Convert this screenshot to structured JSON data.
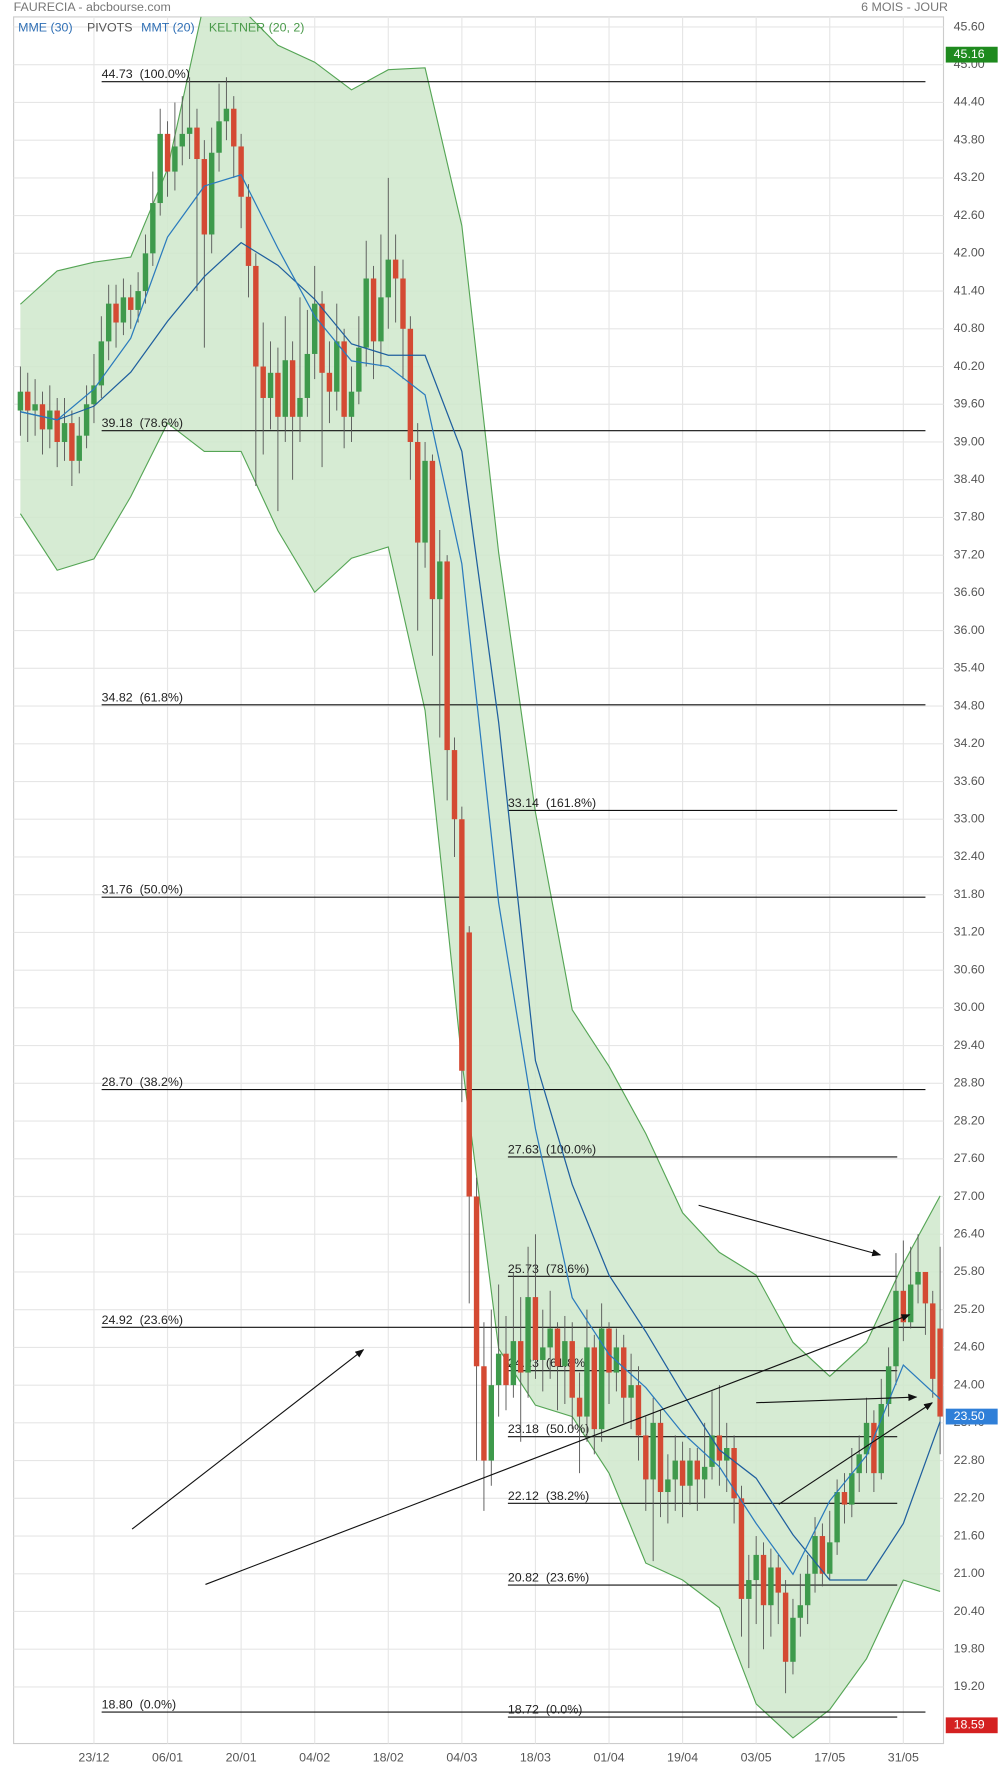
{
  "chart_data": {
    "type": "candlestick",
    "title": "FAURECIA - abcbourse.com",
    "subtitle": "6 MOIS - JOUR",
    "pivots": "PIVOTS",
    "categories": [
      null,
      null,
      null,
      null,
      null,
      null,
      null,
      null,
      null,
      null,
      "23/12",
      null,
      null,
      null,
      null,
      null,
      null,
      null,
      null,
      null,
      "06/01",
      null,
      null,
      null,
      null,
      null,
      null,
      null,
      null,
      null,
      "20/01",
      null,
      null,
      null,
      null,
      null,
      null,
      null,
      null,
      null,
      "04/02",
      null,
      null,
      null,
      null,
      null,
      null,
      null,
      null,
      null,
      "18/02",
      null,
      null,
      null,
      null,
      null,
      null,
      null,
      null,
      null,
      "04/03",
      null,
      null,
      null,
      null,
      null,
      null,
      null,
      null,
      null,
      "18/03",
      null,
      null,
      null,
      null,
      null,
      null,
      null,
      null,
      null,
      "01/04",
      null,
      null,
      null,
      null,
      null,
      null,
      null,
      null,
      null,
      "19/04",
      null,
      null,
      null,
      null,
      null,
      null,
      null,
      null,
      null,
      "03/05",
      null,
      null,
      null,
      null,
      null,
      null,
      null,
      null,
      null,
      "17/05",
      null,
      null,
      null,
      null,
      null,
      null,
      null,
      null,
      null,
      "31/05",
      null,
      null,
      null,
      null,
      null
    ],
    "open": [
      39.5,
      39.8,
      39.5,
      39.6,
      39.2,
      39.5,
      39.0,
      39.3,
      38.7,
      39.1,
      39.6,
      39.9,
      40.6,
      41.2,
      40.9,
      41.3,
      41.1,
      41.4,
      42.0,
      42.8,
      43.9,
      43.3,
      43.7,
      43.9,
      44.0,
      43.5,
      42.3,
      43.6,
      44.1,
      44.3,
      43.7,
      42.9,
      41.8,
      40.2,
      39.7,
      40.1,
      39.4,
      40.3,
      39.4,
      39.7,
      40.4,
      41.2,
      40.1,
      39.8,
      40.6,
      39.4,
      39.8,
      40.5,
      41.6,
      40.6,
      41.3,
      41.9,
      41.6,
      40.8,
      39.0,
      37.4,
      38.7,
      36.5,
      37.1,
      34.1,
      33.0,
      31.2,
      27.0,
      24.3,
      22.8,
      24.0,
      24.5,
      24.0,
      24.7,
      24.2,
      25.4,
      24.4,
      24.6,
      24.9,
      24.3,
      24.7,
      23.8,
      23.5,
      24.6,
      23.3,
      24.9,
      24.2,
      24.6,
      23.8,
      24.0,
      23.2,
      22.5,
      23.4,
      22.3,
      22.5,
      22.8,
      22.4,
      22.8,
      22.5,
      22.7,
      23.2,
      22.8,
      23.0,
      22.2,
      20.6,
      20.9,
      21.3,
      20.5,
      21.1,
      20.7,
      19.6,
      20.3,
      20.5,
      21.0,
      21.6,
      21.0,
      21.5,
      22.3,
      22.1,
      22.6,
      22.9,
      23.4,
      22.6,
      23.7,
      24.3,
      25.5,
      25.0,
      25.6,
      25.8,
      25.3,
      24.9
    ],
    "high": [
      40.2,
      40.1,
      40.0,
      39.8,
      39.9,
      39.7,
      39.7,
      39.5,
      39.4,
      39.9,
      40.4,
      41.0,
      41.5,
      41.5,
      41.6,
      41.5,
      41.7,
      42.3,
      43.3,
      44.3,
      44.1,
      44.4,
      44.5,
      44.8,
      44.3,
      43.8,
      44.0,
      44.7,
      44.8,
      44.5,
      43.9,
      43.1,
      42.0,
      40.9,
      40.6,
      40.5,
      41.0,
      40.6,
      41.3,
      41.1,
      41.8,
      41.4,
      40.6,
      41.2,
      40.8,
      40.2,
      41.0,
      42.2,
      41.8,
      42.3,
      43.2,
      42.3,
      41.9,
      41.0,
      39.3,
      39.0,
      38.8,
      37.6,
      37.2,
      34.3,
      33.2,
      31.3,
      27.3,
      25.0,
      25.2,
      25.6,
      25.1,
      25.8,
      25.4,
      26.2,
      26.4,
      25.2,
      25.5,
      25.0,
      25.1,
      25.0,
      24.2,
      25.2,
      24.8,
      25.3,
      25.0,
      24.9,
      24.8,
      24.5,
      24.3,
      23.5,
      23.8,
      23.6,
      22.9,
      23.2,
      23.1,
      23.0,
      23.0,
      23.4,
      23.9,
      24.0,
      23.4,
      23.2,
      22.4,
      21.3,
      21.6,
      21.5,
      21.4,
      21.3,
      20.9,
      20.6,
      21.0,
      21.3,
      21.9,
      21.8,
      22.0,
      22.5,
      22.6,
      23.0,
      23.2,
      23.8,
      23.6,
      24.1,
      24.6,
      26.1,
      26.3,
      26.2,
      26.4,
      25.7,
      25.5,
      26.2
    ],
    "low": [
      39.1,
      39.0,
      39.1,
      38.8,
      38.9,
      38.6,
      38.7,
      38.3,
      38.5,
      38.9,
      39.3,
      39.7,
      40.3,
      40.5,
      40.7,
      40.8,
      40.9,
      41.2,
      41.8,
      42.6,
      42.9,
      43.0,
      43.4,
      43.5,
      41.4,
      40.5,
      42.0,
      43.3,
      43.8,
      43.2,
      42.4,
      41.3,
      38.3,
      38.8,
      39.2,
      37.9,
      39.0,
      38.4,
      39.0,
      39.4,
      40.0,
      38.6,
      39.3,
      39.5,
      38.9,
      39.0,
      39.6,
      40.2,
      40.0,
      40.2,
      40.8,
      40.9,
      40.0,
      38.4,
      36.0,
      37.0,
      35.6,
      34.3,
      33.3,
      32.4,
      28.5,
      25.3,
      22.8,
      22.0,
      22.4,
      23.5,
      23.6,
      23.8,
      23.1,
      23.8,
      24.1,
      23.9,
      24.1,
      23.6,
      23.7,
      23.3,
      22.6,
      23.1,
      22.9,
      23.1,
      23.7,
      23.9,
      23.4,
      23.3,
      22.8,
      22.0,
      21.2,
      21.9,
      21.8,
      22.0,
      21.9,
      22.1,
      22.0,
      22.2,
      22.5,
      22.4,
      22.3,
      21.8,
      20.0,
      19.5,
      20.2,
      19.8,
      20.0,
      20.2,
      19.1,
      19.4,
      20.0,
      20.2,
      20.7,
      20.8,
      20.9,
      21.3,
      21.8,
      21.9,
      22.3,
      22.6,
      22.3,
      22.5,
      23.5,
      24.0,
      24.7,
      24.9,
      25.3,
      24.8,
      23.8,
      22.9
    ],
    "close": [
      39.8,
      39.5,
      39.6,
      39.2,
      39.5,
      39.0,
      39.3,
      38.7,
      39.1,
      39.6,
      39.9,
      40.6,
      41.2,
      40.9,
      41.3,
      41.1,
      41.4,
      42.0,
      42.8,
      43.9,
      43.3,
      43.7,
      43.9,
      44.0,
      43.5,
      42.3,
      43.6,
      44.1,
      44.3,
      43.7,
      42.9,
      41.8,
      40.2,
      39.7,
      40.1,
      39.4,
      40.3,
      39.4,
      39.7,
      40.4,
      41.2,
      40.1,
      39.8,
      40.6,
      39.4,
      39.8,
      40.5,
      41.6,
      40.6,
      41.3,
      41.9,
      41.6,
      40.8,
      39.0,
      37.4,
      38.7,
      36.5,
      37.1,
      34.1,
      33.0,
      29.0,
      27.0,
      24.3,
      22.8,
      24.0,
      24.5,
      24.0,
      24.7,
      24.2,
      25.4,
      24.4,
      24.6,
      24.9,
      24.3,
      24.7,
      23.8,
      23.5,
      24.6,
      23.3,
      24.9,
      24.2,
      24.6,
      23.8,
      24.0,
      23.2,
      22.5,
      23.4,
      22.3,
      22.5,
      22.8,
      22.4,
      22.8,
      22.5,
      22.7,
      23.2,
      22.8,
      23.0,
      22.2,
      20.6,
      20.9,
      21.3,
      20.5,
      21.1,
      20.7,
      19.6,
      20.3,
      20.5,
      21.0,
      21.6,
      21.0,
      21.5,
      22.3,
      22.1,
      22.6,
      22.9,
      23.4,
      22.6,
      23.7,
      24.3,
      25.5,
      25.0,
      25.6,
      25.8,
      25.3,
      24.1,
      23.5
    ],
    "up_color": "#3e9a4c",
    "down_color": "#d44a33",
    "indicators": [
      {
        "name": "MME (30)",
        "color": "#1f5f9e",
        "x": [
          0,
          5,
          10,
          15,
          20,
          25,
          30,
          35,
          40,
          45,
          50,
          55,
          60,
          65,
          70,
          75,
          80,
          85,
          90,
          95,
          100,
          105,
          110,
          115,
          120,
          125
        ],
        "values": [
          39.48,
          39.35,
          39.57,
          40.11,
          40.92,
          41.63,
          42.17,
          41.81,
          41.27,
          40.56,
          40.38,
          40.38,
          38.85,
          34.54,
          29.16,
          27.19,
          25.75,
          24.85,
          23.87,
          22.97,
          22.52,
          21.62,
          20.9,
          20.9,
          21.8,
          23.42
        ]
      },
      {
        "name": "MMT (20)",
        "color": "#2b7bbd",
        "x": [
          0,
          5,
          10,
          15,
          20,
          25,
          30,
          35,
          40,
          45,
          50,
          55,
          60,
          65,
          70,
          75,
          80,
          85,
          90,
          95,
          100,
          105,
          110,
          115,
          120,
          125
        ],
        "values": [
          39.48,
          39.35,
          39.84,
          40.65,
          42.26,
          43.07,
          43.25,
          42.08,
          41.0,
          40.29,
          40.2,
          39.75,
          37.06,
          31.67,
          28.08,
          25.39,
          24.49,
          23.96,
          23.24,
          22.7,
          21.8,
          20.99,
          22.16,
          22.88,
          24.32,
          23.78
        ]
      }
    ],
    "band": {
      "name": "KELTNER (20, 2)",
      "color": "#55a555",
      "fill": "#cfe8cb",
      "x": [
        0,
        5,
        10,
        15,
        20,
        25,
        30,
        35,
        40,
        45,
        50,
        55,
        60,
        65,
        70,
        75,
        80,
        85,
        90,
        95,
        100,
        105,
        110,
        115,
        120,
        125
      ],
      "upper": [
        41.19,
        41.72,
        41.86,
        41.94,
        43.34,
        46.0,
        45.9,
        45.31,
        45.04,
        44.6,
        44.92,
        44.95,
        42.44,
        37.24,
        33.11,
        29.97,
        29.07,
        28.0,
        26.74,
        26.11,
        25.75,
        24.68,
        24.14,
        24.68,
        25.93,
        27.01
      ],
      "lower": [
        37.86,
        36.96,
        37.14,
        38.13,
        39.3,
        38.85,
        38.85,
        37.59,
        36.61,
        37.15,
        37.33,
        34.73,
        29.16,
        24.58,
        23.68,
        23.5,
        22.6,
        21.17,
        20.9,
        20.46,
        18.93,
        18.39,
        18.84,
        19.65,
        20.9,
        20.72
      ]
    },
    "retracements": [
      {
        "levels": [
          {
            "value": 44.73,
            "label": "44.73  (100.0%)"
          },
          {
            "value": 39.18,
            "label": "39.18  (78.6%)"
          },
          {
            "value": 34.82,
            "label": "34.82  (61.8%)"
          },
          {
            "value": 31.76,
            "label": "31.76  (50.0%)"
          },
          {
            "value": 28.7,
            "label": "28.70  (38.2%)"
          },
          {
            "value": 24.92,
            "label": "24.92  (23.6%)"
          },
          {
            "value": 18.8,
            "label": "18.80  (0.0%)"
          }
        ]
      },
      {
        "levels": [
          {
            "value": 33.14,
            "label": "33.14  (161.8%)"
          },
          {
            "value": 27.63,
            "label": "27.63  (100.0%)"
          },
          {
            "value": 25.73,
            "label": "25.73  (78.6%)"
          },
          {
            "value": 24.23,
            "label": "24.23  (61.8%)"
          },
          {
            "value": 23.18,
            "label": "23.18  (50.0%)"
          },
          {
            "value": 22.12,
            "label": "22.12  (38.2%)"
          },
          {
            "value": 20.82,
            "label": "20.82  (23.6%)"
          },
          {
            "value": 18.72,
            "label": "18.72  (0.0%)"
          }
        ]
      }
    ],
    "price_badges": [
      {
        "value": 45.16,
        "color": "#1e8a1e"
      },
      {
        "value": 23.5,
        "label": "23.50",
        "color": "#2f7fd8"
      },
      {
        "value": 18.59,
        "color": "#d42020"
      }
    ],
    "ylim": [
      18.3,
      45.76
    ],
    "yticks": [
      {
        "value": 19.2,
        "label": "19.20"
      },
      {
        "value": 19.8,
        "label": "19.80"
      },
      {
        "value": 20.4,
        "label": "20.40"
      },
      {
        "value": 21,
        "label": "21.00"
      },
      {
        "value": 21.6,
        "label": "21.60"
      },
      {
        "value": 22.2,
        "label": "22.20"
      },
      {
        "value": 22.8,
        "label": "22.80"
      },
      {
        "value": 23.4,
        "label": "23.40"
      },
      {
        "value": 24,
        "label": "24.00"
      },
      {
        "value": 24.6,
        "label": "24.60"
      },
      {
        "value": 25.2,
        "label": "25.20"
      },
      {
        "value": 25.8,
        "label": "25.80"
      },
      {
        "value": 26.4,
        "label": "26.40"
      },
      {
        "value": 27,
        "label": "27.00"
      },
      {
        "value": 27.6,
        "label": "27.60"
      },
      {
        "value": 28.2,
        "label": "28.20"
      },
      {
        "value": 28.8,
        "label": "28.80"
      },
      {
        "value": 29.4,
        "label": "29.40"
      },
      {
        "value": 30,
        "label": "30.00"
      },
      {
        "value": 30.6,
        "label": "30.60"
      },
      {
        "value": 31.2,
        "label": "31.20"
      },
      {
        "value": 31.8,
        "label": "31.80"
      },
      {
        "value": 32.4,
        "label": "32.40"
      },
      {
        "value": 33,
        "label": "33.00"
      },
      {
        "value": 33.6,
        "label": "33.60"
      },
      {
        "value": 34.2,
        "label": "34.20"
      },
      {
        "value": 34.8,
        "label": "34.80"
      },
      {
        "value": 35.4,
        "label": "35.40"
      },
      {
        "value": 36,
        "label": "36.00"
      },
      {
        "value": 36.6,
        "label": "36.60"
      },
      {
        "value": 37.2,
        "label": "37.20"
      },
      {
        "value": 37.8,
        "label": "37.80"
      },
      {
        "value": 38.4,
        "label": "38.40"
      },
      {
        "value": 39,
        "label": "39.00"
      },
      {
        "value": 39.6,
        "label": "39.60"
      },
      {
        "value": 40.2,
        "label": "40.20"
      },
      {
        "value": 40.8,
        "label": "40.80"
      },
      {
        "value": 41.4,
        "label": "41.40"
      },
      {
        "value": 42,
        "label": "42.00"
      },
      {
        "value": 42.6,
        "label": "42.60"
      },
      {
        "value": 43.2,
        "label": "43.20"
      },
      {
        "value": 43.8,
        "label": "43.80"
      },
      {
        "value": 44.4,
        "label": "44.40"
      },
      {
        "value": 45,
        "label": "45.00"
      },
      {
        "value": 45.6,
        "label": "45.60"
      }
    ],
    "grid": true
  }
}
